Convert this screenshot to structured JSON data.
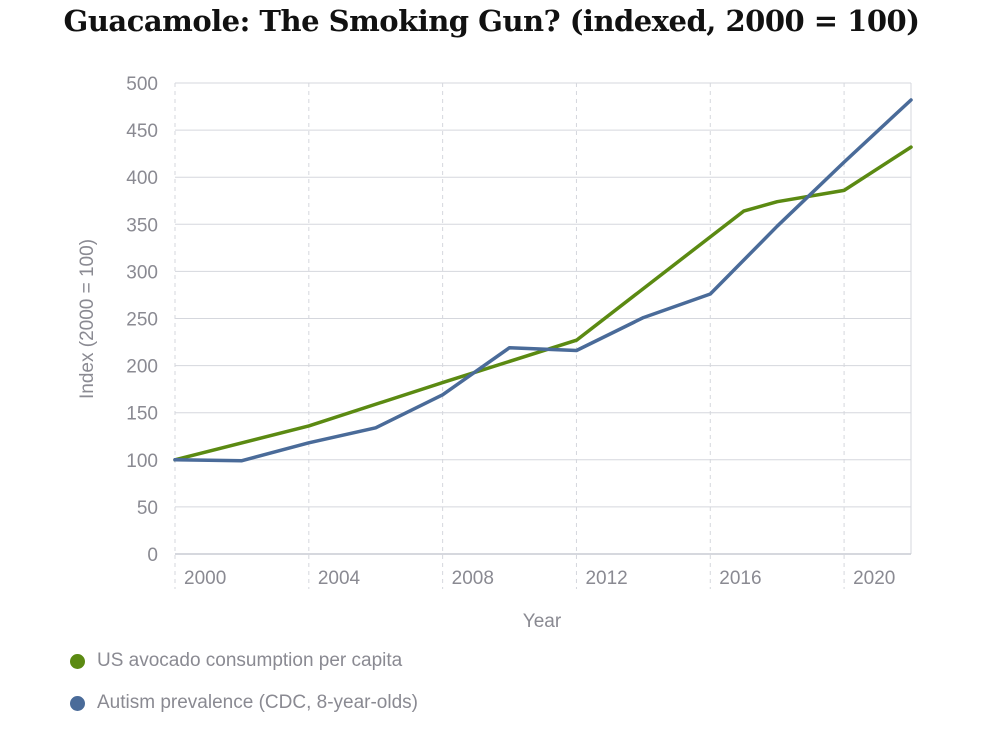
{
  "title": "Guacamole: The Smoking Gun? (indexed, 2000 = 100)",
  "chart_data": {
    "type": "line",
    "title": "Guacamole: The Smoking Gun? (indexed, 2000 = 100)",
    "xlabel": "Year",
    "ylabel": "Index (2000 = 100)",
    "xlim": [
      2000,
      2022
    ],
    "ylim": [
      0,
      500
    ],
    "x_ticks": [
      2000,
      2004,
      2008,
      2012,
      2016,
      2020
    ],
    "y_ticks": [
      0,
      50,
      100,
      150,
      200,
      250,
      300,
      350,
      400,
      450,
      500
    ],
    "grid": true,
    "legend_position": "bottom-left",
    "series": [
      {
        "name": "US avocado consumption per capita",
        "color": "#5b8a12",
        "x": [
          2000,
          2004,
          2008,
          2012,
          2017,
          2018,
          2020,
          2022
        ],
        "y": [
          100,
          136,
          182,
          227,
          364,
          374,
          386,
          432
        ]
      },
      {
        "name": "Autism prevalence (CDC, 8-year-olds)",
        "color": "#4a6b99",
        "x": [
          2000,
          2002,
          2004,
          2006,
          2008,
          2010,
          2012,
          2014,
          2016,
          2018,
          2020,
          2022
        ],
        "y": [
          100,
          99,
          118,
          134,
          169,
          219,
          216,
          251,
          276,
          348,
          416,
          482
        ]
      }
    ]
  }
}
